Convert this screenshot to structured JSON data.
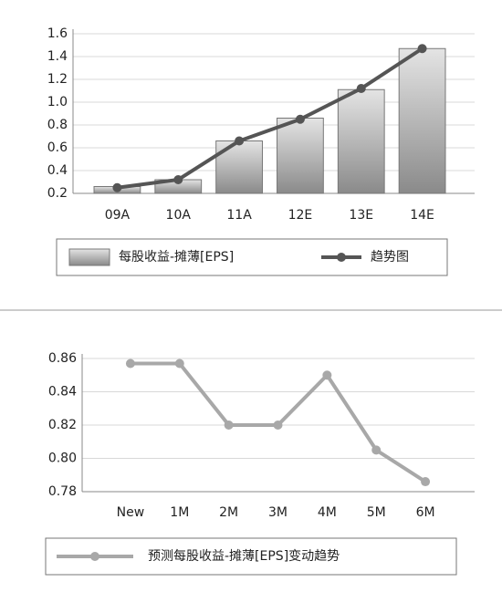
{
  "chart_data": [
    {
      "type": "bar",
      "categories": [
        "09A",
        "10A",
        "11A",
        "12E",
        "13E",
        "14E"
      ],
      "series": [
        {
          "name": "每股收益-摊薄[EPS]",
          "type": "bar",
          "color": "#8c8c8c",
          "values": [
            0.26,
            0.32,
            0.66,
            0.86,
            1.11,
            1.47
          ]
        },
        {
          "name": "趋势图",
          "type": "line",
          "color": "#555555",
          "values": [
            0.25,
            0.32,
            0.66,
            0.85,
            1.12,
            1.47
          ]
        }
      ],
      "ylim": [
        0.2,
        1.6
      ],
      "yticks": [
        0.2,
        0.4,
        0.6,
        0.8,
        {
          "value": 1.0,
          "label": "1.0"
        },
        1.2,
        1.4,
        1.6
      ],
      "grid": true
    },
    {
      "type": "line",
      "categories": [
        "New",
        "1M",
        "2M",
        "3M",
        "4M",
        "5M",
        "6M"
      ],
      "series": [
        {
          "name": "预测每股收益-摊薄[EPS]变动趋势",
          "type": "line",
          "color": "#a8a8a8",
          "values": [
            0.857,
            0.857,
            0.82,
            0.82,
            0.85,
            0.805,
            0.786
          ]
        }
      ],
      "ylim": [
        0.78,
        0.86
      ],
      "yticks": [
        0.78,
        {
          "value": 0.8,
          "label": "0.80"
        },
        0.82,
        0.84,
        0.86
      ],
      "grid": true
    }
  ]
}
